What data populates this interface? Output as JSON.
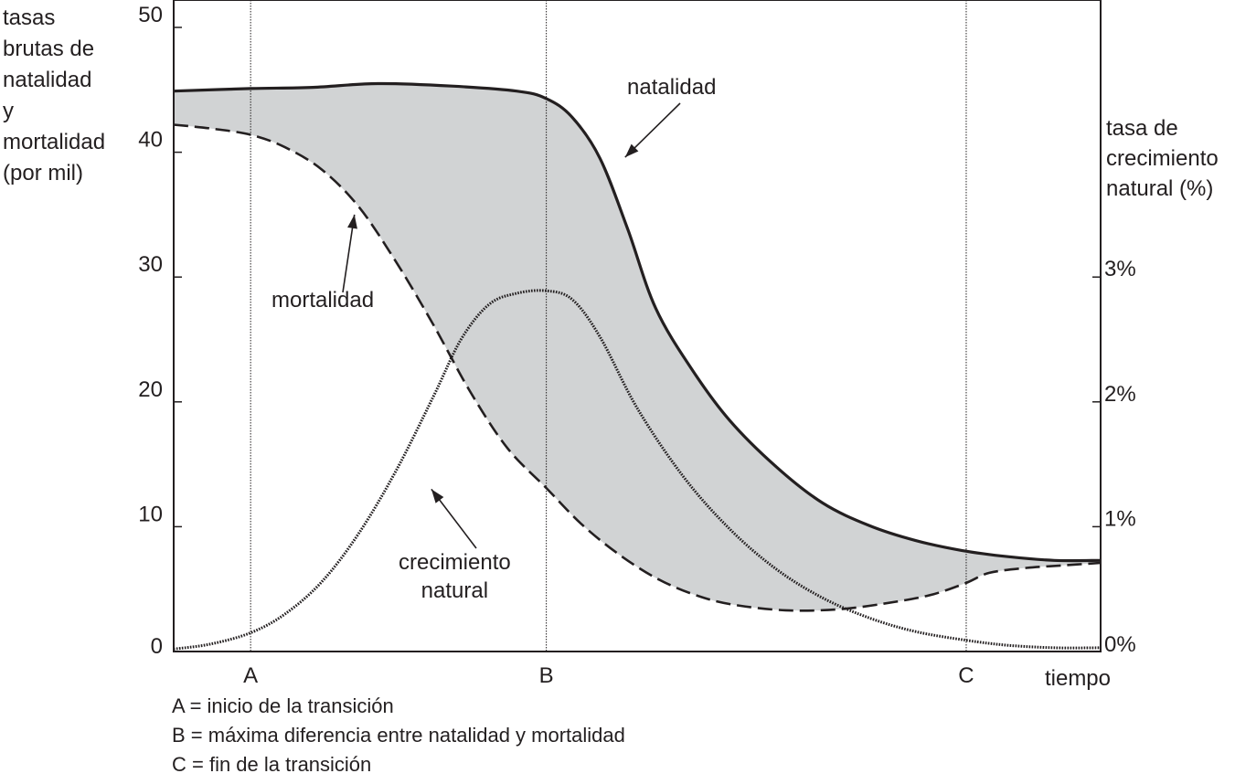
{
  "chart_data": {
    "type": "line",
    "y_left": {
      "label": "tasas\nbrutas de\nnatalidad\ny\nmortalidad\n(por mil)",
      "ticks": [
        "0",
        "10",
        "20",
        "30",
        "40",
        "50"
      ],
      "tick_values": [
        0,
        10,
        20,
        30,
        40,
        50
      ],
      "range": [
        0,
        50
      ]
    },
    "y_right": {
      "label": "tasa de\ncrecimiento\nnatural (%)",
      "ticks": [
        "0%",
        "1%",
        "2%",
        "3%"
      ],
      "tick_values": [
        0,
        1,
        2,
        3
      ],
      "range": [
        0,
        5
      ]
    },
    "x_axis": {
      "label": "tiempo",
      "range": [
        0,
        100
      ]
    },
    "markers": [
      {
        "label": "A",
        "x": 8.3
      },
      {
        "label": "B",
        "x": 40.2
      },
      {
        "label": "C",
        "x": 85.5
      }
    ],
    "series": [
      {
        "name": "natalidad",
        "style": "solid",
        "axis": "left",
        "points": [
          [
            0,
            44.9
          ],
          [
            8.3,
            45.1
          ],
          [
            15,
            45.2
          ],
          [
            22,
            45.5
          ],
          [
            30,
            45.3
          ],
          [
            37,
            44.9
          ],
          [
            40.2,
            44.3
          ],
          [
            43,
            42.8
          ],
          [
            46,
            39.5
          ],
          [
            49,
            33.8
          ],
          [
            52,
            27.5
          ],
          [
            56,
            22.5
          ],
          [
            60,
            18.5
          ],
          [
            65,
            14.8
          ],
          [
            70,
            11.9
          ],
          [
            75,
            10.1
          ],
          [
            80,
            8.9
          ],
          [
            85,
            8.1
          ],
          [
            90,
            7.6
          ],
          [
            95,
            7.3
          ],
          [
            100,
            7.3
          ]
        ]
      },
      {
        "name": "mortalidad",
        "style": "dashed",
        "axis": "left",
        "points": [
          [
            0,
            42.2
          ],
          [
            4,
            41.9
          ],
          [
            8.3,
            41.4
          ],
          [
            12,
            40.4
          ],
          [
            16,
            38.6
          ],
          [
            20,
            35.6
          ],
          [
            24,
            31.2
          ],
          [
            28,
            26.2
          ],
          [
            32,
            20.8
          ],
          [
            36,
            16.3
          ],
          [
            40.2,
            13.1
          ],
          [
            44,
            10.2
          ],
          [
            48,
            7.8
          ],
          [
            52,
            5.9
          ],
          [
            56,
            4.6
          ],
          [
            60,
            3.8
          ],
          [
            66,
            3.3
          ],
          [
            72,
            3.4
          ],
          [
            78,
            4.0
          ],
          [
            82,
            4.6
          ],
          [
            85.5,
            5.5
          ],
          [
            88,
            6.3
          ],
          [
            92,
            6.7
          ],
          [
            96,
            6.9
          ],
          [
            100,
            7.1
          ]
        ]
      },
      {
        "name": "crecimiento natural",
        "style": "dotted",
        "axis": "right",
        "points": [
          [
            0,
            0.02
          ],
          [
            4,
            0.06
          ],
          [
            8.3,
            0.15
          ],
          [
            12,
            0.3
          ],
          [
            16,
            0.56
          ],
          [
            20,
            0.95
          ],
          [
            24,
            1.45
          ],
          [
            28,
            2.04
          ],
          [
            31,
            2.5
          ],
          [
            34,
            2.78
          ],
          [
            37,
            2.87
          ],
          [
            40.2,
            2.89
          ],
          [
            43,
            2.82
          ],
          [
            46,
            2.52
          ],
          [
            50,
            1.95
          ],
          [
            55,
            1.4
          ],
          [
            60,
            0.98
          ],
          [
            65,
            0.66
          ],
          [
            70,
            0.43
          ],
          [
            75,
            0.27
          ],
          [
            80,
            0.16
          ],
          [
            85.5,
            0.09
          ],
          [
            90,
            0.05
          ],
          [
            95,
            0.03
          ],
          [
            100,
            0.03
          ]
        ]
      }
    ],
    "annotations": [
      {
        "text": "natalidad",
        "series": "natalidad",
        "arrow_to": [
          48.7,
          39.6
        ]
      },
      {
        "text": "mortalidad",
        "series": "mortalidad",
        "arrow_to": [
          19.5,
          35.0
        ]
      },
      {
        "text": "crecimiento\nnatural",
        "series": "crecimiento natural",
        "arrow_to": [
          27.8,
          1.3
        ]
      }
    ],
    "legend": [
      "A = inicio de la transición",
      "B = máxima diferencia entre natalidad y mortalidad",
      "C = fin de la transición"
    ],
    "grid": false,
    "fill_between": {
      "series": [
        "natalidad",
        "mortalidad"
      ],
      "color": "#d1d3d4"
    }
  }
}
